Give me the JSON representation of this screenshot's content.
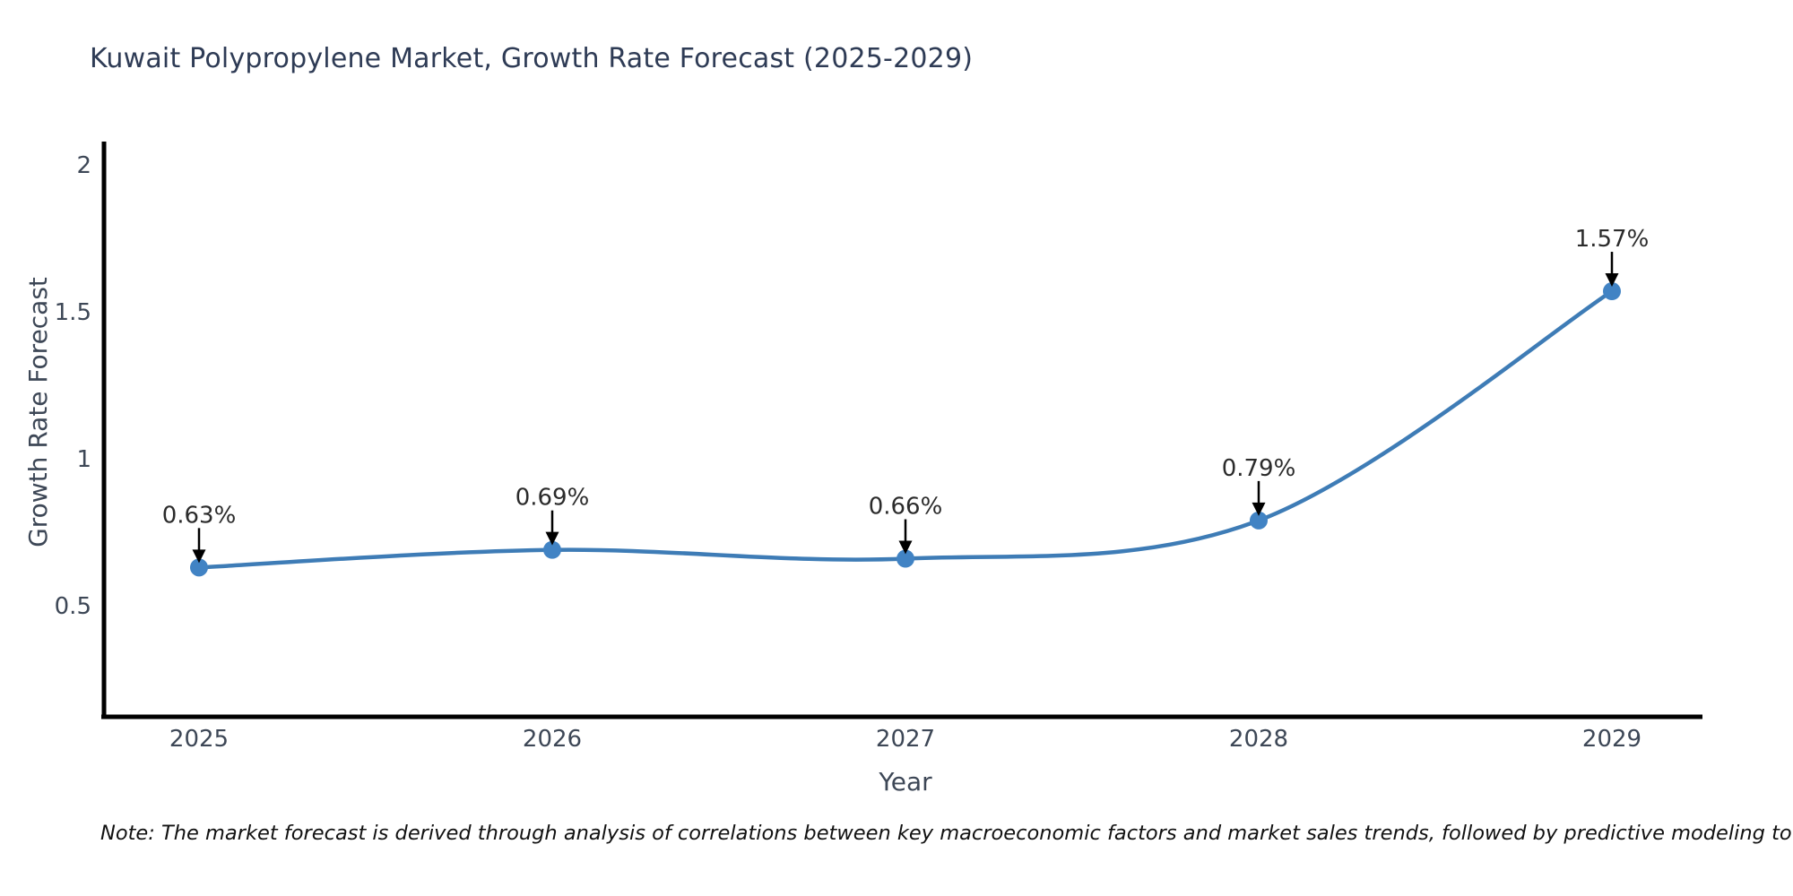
{
  "title": "Kuwait Polypropylene Market, Growth Rate Forecast (2025-2029)",
  "note": "Note: The market forecast is derived through analysis of correlations between key macroeconomic factors and market sales trends, followed by predictive modeling to project future sales",
  "chart_data": {
    "type": "line",
    "title": "Kuwait Polypropylene Market, Growth Rate Forecast (2025-2029)",
    "xlabel": "Year",
    "ylabel": "Growth Rate Forecast",
    "categories": [
      "2025",
      "2026",
      "2027",
      "2028",
      "2029"
    ],
    "values": [
      0.63,
      0.69,
      0.66,
      0.79,
      1.57
    ],
    "point_labels": [
      "0.63%",
      "0.69%",
      "0.66%",
      "0.79%",
      "1.57%"
    ],
    "yticks": [
      0.5,
      1,
      1.5,
      2
    ],
    "ytick_labels": [
      "0.5",
      "1",
      "1.5",
      "2"
    ],
    "ylim": [
      0.12,
      2.07
    ],
    "grid": false,
    "legend": null,
    "smooth_line": true,
    "annotation_arrows": true,
    "colors": {
      "line": "#3e7cb6",
      "marker": "#4183c4",
      "axis": "#000000",
      "tick_text": "#3d4756",
      "title_text": "#2e3b55",
      "annotation_text": "#2b2b2b",
      "arrow": "#000000",
      "note_text": "#111111"
    }
  }
}
